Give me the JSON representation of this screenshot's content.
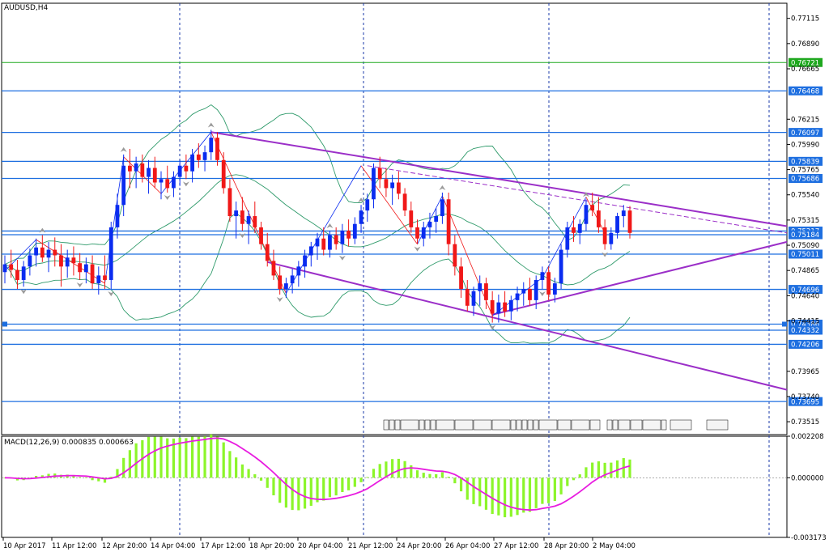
{
  "symbol_label": "AUDUSD,H4",
  "macd_label": "MACD(12,26,9) 0.000835 0.000663",
  "colors": {
    "bull": "#0a2cf0",
    "bear": "#f01818",
    "hline": "#1e6fe0",
    "green_line": "#1fa81f",
    "channel": "#9b2fc8",
    "bollinger": "#2e9a6a",
    "macd_hist": "#8cf52a",
    "macd_signal": "#e81ce0",
    "grid": "#1a3aa8"
  },
  "chart_data": [
    {
      "type": "candlestick",
      "symbol": "AUDUSD",
      "timeframe": "H4",
      "ylim": [
        0.734,
        0.7725
      ],
      "y_ticks": [
        "0.77115",
        "0.76890",
        "0.76665",
        "0.76215",
        "0.75990",
        "0.75765",
        "0.75540",
        "0.75315",
        "0.75090",
        "0.74865",
        "0.74640",
        "0.74415",
        "0.73965",
        "0.73740",
        "0.73515"
      ],
      "x_ticks": [
        "10 Apr 2017",
        "11 Apr 12:00",
        "12 Apr 20:00",
        "14 Apr 04:00",
        "17 Apr 12:00",
        "18 Apr 20:00",
        "20 Apr 04:00",
        "21 Apr 12:00",
        "24 Apr 20:00",
        "26 Apr 04:00",
        "27 Apr 12:00",
        "28 Apr 20:00",
        "2 May 04:00"
      ],
      "horizontal_levels": [
        {
          "label": "0.76721",
          "value": 0.76721,
          "color": "green"
        },
        {
          "label": "0.76468",
          "value": 0.76468,
          "color": "blue"
        },
        {
          "label": "0.76097",
          "value": 0.76097,
          "color": "blue"
        },
        {
          "label": "0.75839",
          "value": 0.75839,
          "color": "blue"
        },
        {
          "label": "0.75686",
          "value": 0.75686,
          "color": "blue"
        },
        {
          "label": "0.75217",
          "value": 0.75217,
          "color": "blue"
        },
        {
          "label": "0.75184",
          "value": 0.75184,
          "color": "blue"
        },
        {
          "label": "0.75011",
          "value": 0.75011,
          "color": "blue"
        },
        {
          "label": "0.74696",
          "value": 0.74696,
          "color": "blue"
        },
        {
          "label": "0.74386",
          "value": 0.74386,
          "color": "blue"
        },
        {
          "label": "0.74332",
          "value": 0.74332,
          "color": "blue"
        },
        {
          "label": "0.74206",
          "value": 0.74206,
          "color": "blue"
        },
        {
          "label": "0.73695",
          "value": 0.73695,
          "color": "blue"
        }
      ],
      "candles": [
        [
          0.7485,
          0.75,
          0.7475,
          0.7492
        ],
        [
          0.7492,
          0.7505,
          0.748,
          0.7487
        ],
        [
          0.7487,
          0.7496,
          0.747,
          0.7478
        ],
        [
          0.7478,
          0.7495,
          0.7472,
          0.749
        ],
        [
          0.749,
          0.7506,
          0.7482,
          0.75
        ],
        [
          0.75,
          0.7515,
          0.749,
          0.7507
        ],
        [
          0.7507,
          0.7518,
          0.7494,
          0.7498
        ],
        [
          0.7498,
          0.7512,
          0.7485,
          0.7505
        ],
        [
          0.7505,
          0.7516,
          0.749,
          0.75
        ],
        [
          0.75,
          0.751,
          0.7472,
          0.749
        ],
        [
          0.749,
          0.7505,
          0.748,
          0.7498
        ],
        [
          0.7498,
          0.7508,
          0.7482,
          0.7493
        ],
        [
          0.7493,
          0.7502,
          0.7478,
          0.7485
        ],
        [
          0.7485,
          0.7498,
          0.7475,
          0.7492
        ],
        [
          0.7492,
          0.75,
          0.747,
          0.7475
        ],
        [
          0.7475,
          0.749,
          0.7465,
          0.7482
        ],
        [
          0.7482,
          0.75,
          0.747,
          0.7478
        ],
        [
          0.7478,
          0.753,
          0.747,
          0.7525
        ],
        [
          0.7525,
          0.7555,
          0.7515,
          0.7545
        ],
        [
          0.7545,
          0.759,
          0.7535,
          0.758
        ],
        [
          0.758,
          0.7595,
          0.756,
          0.7575
        ],
        [
          0.7575,
          0.7588,
          0.756,
          0.7582
        ],
        [
          0.7582,
          0.759,
          0.7565,
          0.757
        ],
        [
          0.757,
          0.7585,
          0.7555,
          0.7578
        ],
        [
          0.7578,
          0.7588,
          0.756,
          0.7565
        ],
        [
          0.7565,
          0.7575,
          0.755,
          0.7568
        ],
        [
          0.7568,
          0.758,
          0.7556,
          0.756
        ],
        [
          0.756,
          0.7575,
          0.7552,
          0.757
        ],
        [
          0.757,
          0.7585,
          0.7562,
          0.758
        ],
        [
          0.758,
          0.759,
          0.7568,
          0.7575
        ],
        [
          0.7575,
          0.7595,
          0.7565,
          0.759
        ],
        [
          0.759,
          0.76,
          0.7578,
          0.7585
        ],
        [
          0.7585,
          0.7598,
          0.7575,
          0.7592
        ],
        [
          0.7592,
          0.7612,
          0.7585,
          0.7605
        ],
        [
          0.7605,
          0.761,
          0.758,
          0.7585
        ],
        [
          0.7585,
          0.7592,
          0.7555,
          0.756
        ],
        [
          0.756,
          0.7568,
          0.753,
          0.7535
        ],
        [
          0.7535,
          0.7548,
          0.7515,
          0.754
        ],
        [
          0.754,
          0.7552,
          0.7522,
          0.7528
        ],
        [
          0.7528,
          0.754,
          0.751,
          0.7535
        ],
        [
          0.7535,
          0.7548,
          0.752,
          0.7525
        ],
        [
          0.7525,
          0.753,
          0.7505,
          0.751
        ],
        [
          0.751,
          0.752,
          0.749,
          0.7495
        ],
        [
          0.7495,
          0.7505,
          0.7478,
          0.7482
        ],
        [
          0.7482,
          0.749,
          0.7465,
          0.747
        ],
        [
          0.747,
          0.748,
          0.7462,
          0.7475
        ],
        [
          0.7475,
          0.7488,
          0.7466,
          0.7482
        ],
        [
          0.7482,
          0.7495,
          0.7472,
          0.749
        ],
        [
          0.749,
          0.7505,
          0.748,
          0.75
        ],
        [
          0.75,
          0.7512,
          0.749,
          0.7508
        ],
        [
          0.7508,
          0.752,
          0.7496,
          0.7515
        ],
        [
          0.7515,
          0.7525,
          0.75,
          0.7505
        ],
        [
          0.7505,
          0.7522,
          0.7498,
          0.7518
        ],
        [
          0.7518,
          0.7525,
          0.7505,
          0.751
        ],
        [
          0.751,
          0.7528,
          0.7502,
          0.7522
        ],
        [
          0.7522,
          0.7532,
          0.7508,
          0.7515
        ],
        [
          0.7515,
          0.7534,
          0.751,
          0.7528
        ],
        [
          0.7528,
          0.7545,
          0.752,
          0.754
        ],
        [
          0.754,
          0.7555,
          0.753,
          0.755
        ],
        [
          0.755,
          0.7582,
          0.7542,
          0.7578
        ],
        [
          0.7578,
          0.7588,
          0.756,
          0.7568
        ],
        [
          0.7568,
          0.7578,
          0.7552,
          0.756
        ],
        [
          0.756,
          0.7572,
          0.7545,
          0.7565
        ],
        [
          0.7565,
          0.7575,
          0.755,
          0.7555
        ],
        [
          0.7555,
          0.756,
          0.7535,
          0.754
        ],
        [
          0.754,
          0.7548,
          0.752,
          0.7525
        ],
        [
          0.7525,
          0.7532,
          0.751,
          0.7515
        ],
        [
          0.7515,
          0.753,
          0.7508,
          0.7525
        ],
        [
          0.7525,
          0.7538,
          0.7515,
          0.753
        ],
        [
          0.753,
          0.7542,
          0.752,
          0.7535
        ],
        [
          0.7535,
          0.7556,
          0.7528,
          0.755
        ],
        [
          0.755,
          0.7556,
          0.75,
          0.751
        ],
        [
          0.751,
          0.7518,
          0.7482,
          0.749
        ],
        [
          0.749,
          0.7498,
          0.7462,
          0.747
        ],
        [
          0.747,
          0.7478,
          0.745,
          0.7455
        ],
        [
          0.7455,
          0.7472,
          0.7446,
          0.7468
        ],
        [
          0.7468,
          0.7482,
          0.7455,
          0.7475
        ],
        [
          0.7475,
          0.748,
          0.7452,
          0.746
        ],
        [
          0.746,
          0.7468,
          0.744,
          0.7448
        ],
        [
          0.7448,
          0.7465,
          0.744,
          0.7458
        ],
        [
          0.7458,
          0.7468,
          0.7445,
          0.745
        ],
        [
          0.745,
          0.7464,
          0.7442,
          0.746
        ],
        [
          0.746,
          0.7472,
          0.745,
          0.7466
        ],
        [
          0.7466,
          0.7476,
          0.7455,
          0.747
        ],
        [
          0.747,
          0.748,
          0.7455,
          0.746
        ],
        [
          0.746,
          0.7482,
          0.7452,
          0.7478
        ],
        [
          0.7478,
          0.749,
          0.747,
          0.7485
        ],
        [
          0.7485,
          0.749,
          0.746,
          0.7465
        ],
        [
          0.7465,
          0.748,
          0.7458,
          0.7475
        ],
        [
          0.7475,
          0.751,
          0.747,
          0.7505
        ],
        [
          0.7505,
          0.753,
          0.7498,
          0.7525
        ],
        [
          0.7525,
          0.7535,
          0.7512,
          0.752
        ],
        [
          0.752,
          0.7532,
          0.751,
          0.7528
        ],
        [
          0.7528,
          0.755,
          0.7522,
          0.7545
        ],
        [
          0.7545,
          0.7556,
          0.7535,
          0.754
        ],
        [
          0.754,
          0.7552,
          0.752,
          0.7525
        ],
        [
          0.7525,
          0.7532,
          0.7505,
          0.751
        ],
        [
          0.751,
          0.7525,
          0.7505,
          0.752
        ],
        [
          0.752,
          0.7538,
          0.7515,
          0.7535
        ],
        [
          0.7535,
          0.7545,
          0.7525,
          0.754
        ],
        [
          0.754,
          0.7544,
          0.7515,
          0.752
        ]
      ]
    },
    {
      "type": "bar",
      "name": "MACD(12,26,9)",
      "values_printed": [
        "0.000835",
        "0.000663"
      ],
      "ylim": [
        -0.003173,
        0.002208
      ],
      "y_ticks": [
        "0.002208",
        "0.000000",
        "-0.003173"
      ]
    }
  ]
}
